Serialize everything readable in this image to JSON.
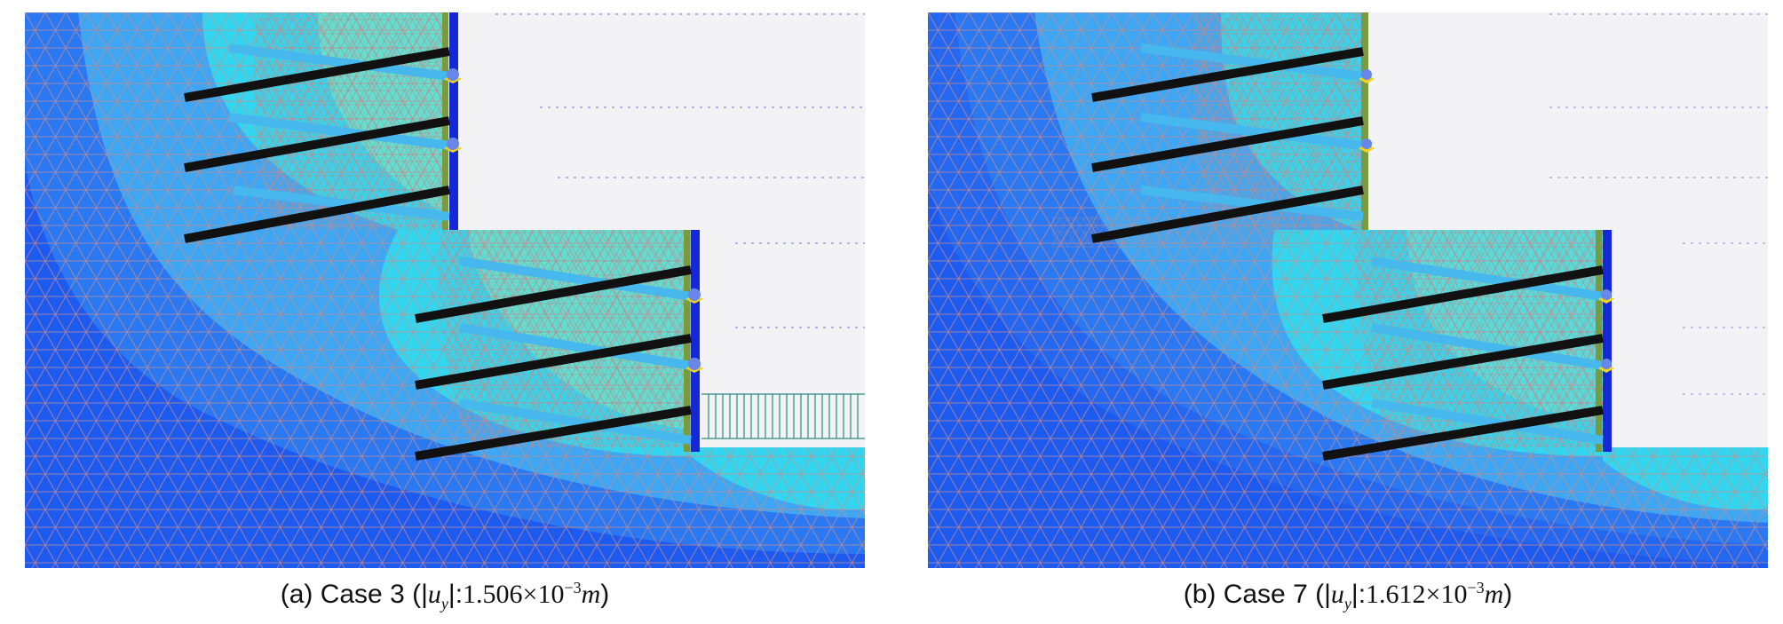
{
  "colors": {
    "soil_far": "#1d5af0",
    "soil_mid": "#2b79f2",
    "soil_near": "#3fa6f3",
    "soil_high": "#33d6ee",
    "soil_peak": "#6de6c9",
    "excavation": "#f3f3f5",
    "wall": "#1428d8",
    "anchor_free": "#46b8ee",
    "anchor_grout": "#111111",
    "mesh_line": "#c98a8a"
  },
  "panels": [
    {
      "id": "a",
      "caption": {
        "prefix": "(a) Case 3 (",
        "symbol": "u",
        "sub": "y",
        "colon": ":",
        "value": "1.506",
        "times": "×",
        "base": "10",
        "exp": "−3",
        "unit": "m",
        "suffix": ")"
      }
    },
    {
      "id": "b",
      "caption": {
        "prefix": "(b) Case 7 (",
        "symbol": "u",
        "sub": "y",
        "colon": ":",
        "value": "1.612",
        "times": "×",
        "base": "10",
        "exp": "−3",
        "unit": "m",
        "suffix": ")"
      }
    }
  ]
}
